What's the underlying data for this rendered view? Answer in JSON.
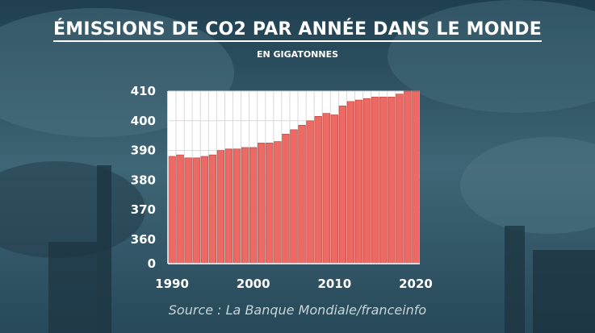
{
  "header": {
    "title": "ÉMISSIONS DE CO2 PAR ANNÉE DANS LE MONDE",
    "subtitle": "EN GIGATONNES"
  },
  "footer": {
    "source": "Source : La Banque Mondiale/franceinfo"
  },
  "colors": {
    "bar_fill": "#ec6a63",
    "bar_stroke": "#b23f3a",
    "plot_bg": "#ffffff",
    "grid": "#d9d9d9",
    "text": "#ffffff"
  },
  "chart_data": {
    "type": "bar",
    "title": "ÉMISSIONS DE CO2 PAR ANNÉE DANS LE MONDE",
    "subtitle": "EN GIGATONNES",
    "xlabel": "",
    "ylabel": "",
    "x": [
      1990,
      1991,
      1992,
      1993,
      1994,
      1995,
      1996,
      1997,
      1998,
      1999,
      2000,
      2001,
      2002,
      2003,
      2004,
      2005,
      2006,
      2007,
      2008,
      2009,
      2010,
      2011,
      2012,
      2013,
      2014,
      2015,
      2016,
      2017,
      2018,
      2019,
      2020
    ],
    "values": [
      388,
      388.5,
      387.5,
      387.5,
      388,
      388.5,
      390,
      390.5,
      390.5,
      391,
      391,
      392.5,
      392.5,
      393,
      395.5,
      397,
      398.5,
      400,
      401.5,
      402.5,
      402,
      405,
      406.5,
      407,
      407.5,
      408,
      408,
      408,
      409,
      410,
      410
    ],
    "x_ticks": [
      "1990",
      "2000",
      "2010",
      "2020"
    ],
    "y_ticks": [
      "410",
      "400",
      "390",
      "380",
      "370",
      "360",
      "0"
    ],
    "y_axis_break": "0 at the base, 360–410 above",
    "ylim": [
      360,
      410
    ],
    "grid": true,
    "legend": "none"
  }
}
